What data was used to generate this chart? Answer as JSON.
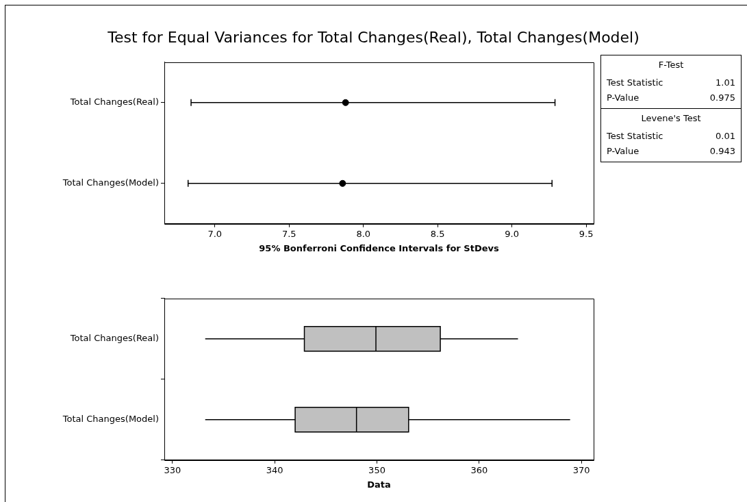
{
  "chart_data": [
    {
      "type": "scatter",
      "title": "Test for Equal Variances for Total Changes(Real), Total Changes(Model)",
      "orientation": "horizontal",
      "categories": [
        "Total Changes(Real)",
        "Total Changes(Model)"
      ],
      "values": [
        7.88,
        7.86
      ],
      "errors": [
        [
          6.84,
          9.29
        ],
        [
          6.82,
          9.27
        ]
      ],
      "color": "#000000",
      "marker": "circle",
      "xlabel": "95% Bonferroni Confidence Intervals for StDevs",
      "xlim": [
        6.66,
        9.55
      ],
      "xticks": [
        {
          "value": 7,
          "label": "7.0"
        },
        {
          "value": 7.5,
          "label": "7.5"
        },
        {
          "value": 8,
          "label": "8.0"
        },
        {
          "value": 8.5,
          "label": "8.5"
        },
        {
          "value": 9,
          "label": "9.0"
        },
        {
          "value": 9.5,
          "label": "9.5"
        }
      ],
      "legend": false
    },
    {
      "type": "box",
      "orientation": "horizontal",
      "categories": [
        "Total Changes(Real)",
        "Total Changes(Model)"
      ],
      "color": "#c0c0c0",
      "boxes": [
        {
          "low": 333.2,
          "q1": 342.9,
          "median": 349.9,
          "q3": 356.2,
          "high": 363.8
        },
        {
          "low": 333.2,
          "q1": 342.0,
          "median": 348.0,
          "q3": 353.1,
          "high": 368.9
        }
      ],
      "xlabel": "Data",
      "xlim": [
        329.2,
        371.2
      ],
      "xticks": [
        330,
        340,
        350,
        360,
        370
      ],
      "legend": false
    },
    {
      "type": "other",
      "annotations": [
        "F-Test",
        "Test Statistic",
        "1.01",
        "P-Value",
        "0.975",
        "Levene's Test",
        "Test Statistic",
        "0.01",
        "P-Value",
        "0.943"
      ]
    }
  ]
}
